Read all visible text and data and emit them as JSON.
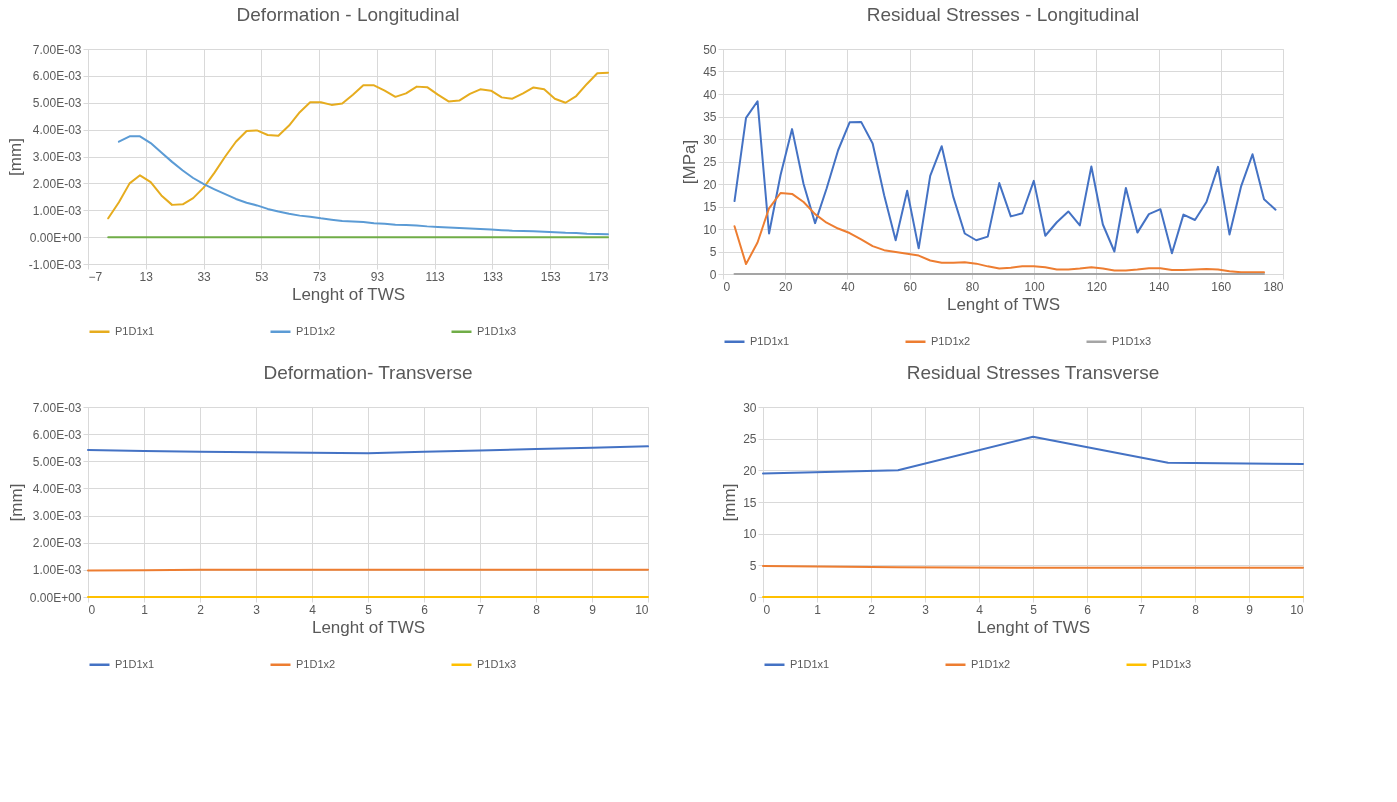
{
  "chart_data": [
    {
      "type": "line",
      "title": "Deformation - Longitudinal",
      "xlabel": "Lenght of TWS",
      "ylabel": "[mm]",
      "x": [
        0,
        3.7,
        7.4,
        11,
        14.7,
        18.4,
        22.1,
        25.8,
        29.4,
        33.1,
        36.8,
        40.5,
        44.2,
        47.9,
        51.5,
        55.2,
        58.9,
        62.6,
        66.3,
        69.9,
        73.6,
        77.3,
        81,
        84.7,
        88.3,
        92,
        95.7,
        99.4,
        103.1,
        106.8,
        110.4,
        114.1,
        117.8,
        121.5,
        125.2,
        128.8,
        132.5,
        136.2,
        139.9,
        143.6,
        147.2,
        150.9,
        154.6,
        158.3,
        162,
        165.7,
        169.3,
        173
      ],
      "series": [
        {
          "name": "P1D1x1",
          "color": "#e6ac1e",
          "values": [
            0.0007,
            0.0013,
            0.002,
            0.0023,
            0.00205,
            0.00155,
            0.0012,
            0.00122,
            0.00145,
            0.00185,
            0.0024,
            0.003,
            0.00355,
            0.00395,
            0.00397,
            0.0038,
            0.00377,
            0.00415,
            0.00465,
            0.00502,
            0.00502,
            0.00492,
            0.00497,
            0.0053,
            0.00565,
            0.00565,
            0.00545,
            0.00522,
            0.00535,
            0.0056,
            0.00558,
            0.0053,
            0.00505,
            0.00508,
            0.00533,
            0.0055,
            0.00545,
            0.0052,
            0.00515,
            0.00535,
            0.00557,
            0.0055,
            0.00515,
            0.005,
            0.00525,
            0.0057,
            0.0061,
            0.00612
          ]
        },
        {
          "name": "P1D1x2",
          "color": "#5b9bd5",
          "values": [
            null,
            0.00355,
            0.00375,
            0.00375,
            0.0035,
            0.00315,
            0.0028,
            0.00248,
            0.0022,
            0.00197,
            0.00178,
            0.0016,
            0.00142,
            0.00128,
            0.00118,
            0.00105,
            0.00095,
            0.00087,
            0.0008,
            0.00076,
            0.0007,
            0.00065,
            0.0006,
            0.00058,
            0.00056,
            0.00052,
            0.0005,
            0.00046,
            0.00045,
            0.00043,
            0.0004,
            0.00038,
            0.00036,
            0.00034,
            0.00032,
            0.0003,
            0.00028,
            0.00026,
            0.00024,
            0.00023,
            0.00022,
            0.0002,
            0.00018,
            0.00016,
            0.00015,
            0.00013,
            0.00012,
            0.00011
          ]
        },
        {
          "name": "P1D1x3",
          "color": "#70ad47",
          "values": [
            0,
            0,
            0,
            0,
            0,
            0,
            0,
            0,
            0,
            0,
            0,
            0,
            0,
            0,
            0,
            0,
            0,
            0,
            0,
            0,
            0,
            0,
            0,
            0,
            0,
            0,
            0,
            0,
            0,
            0,
            0,
            0,
            0,
            0,
            0,
            0,
            0,
            0,
            0,
            0,
            0,
            0,
            0,
            0,
            0,
            0,
            0,
            0
          ]
        }
      ],
      "xlim": [
        -7,
        173
      ],
      "xticks": [
        -7,
        13,
        33,
        53,
        73,
        93,
        113,
        133,
        153,
        173
      ],
      "ylim": [
        -0.001,
        0.007
      ],
      "yticks": [
        {
          "value": -0.001,
          "label": "-1.00E-03"
        },
        {
          "value": 0,
          "label": "0.00E+00"
        },
        {
          "value": 0.001,
          "label": "1.00E-03"
        },
        {
          "value": 0.002,
          "label": "2.00E-03"
        },
        {
          "value": 0.003,
          "label": "3.00E-03"
        },
        {
          "value": 0.004,
          "label": "4.00E-03"
        },
        {
          "value": 0.005,
          "label": "5.00E-03"
        },
        {
          "value": 0.006,
          "label": "6.00E-03"
        },
        {
          "value": 0.007,
          "label": "7.00E-03"
        }
      ],
      "grid": true,
      "legend": "bottom",
      "marker": "none",
      "line_style": "solid"
    },
    {
      "type": "line",
      "title": "Residual Stresses - Longitudinal",
      "xlabel": "Lenght of TWS",
      "ylabel": "[MPa]",
      "x": [
        3.7,
        7.4,
        11.1,
        14.8,
        18.5,
        22.2,
        25.9,
        29.6,
        33.3,
        37,
        40.7,
        44.4,
        48.1,
        51.8,
        55.5,
        59.2,
        62.9,
        66.6,
        70.3,
        74,
        77.7,
        81.4,
        85.1,
        88.8,
        92.5,
        96.2,
        99.9,
        103.6,
        107.3,
        111,
        114.7,
        118.4,
        122.1,
        125.8,
        129.5,
        133.2,
        136.9,
        140.6,
        144.3,
        148,
        151.7,
        155.4,
        159.1,
        162.8,
        166.5,
        170.2,
        173.9,
        177.6
      ],
      "series": [
        {
          "name": "P1D1x1",
          "color": "#4472c4",
          "values": [
            16.2,
            34.7,
            38.4,
            9,
            22,
            32.2,
            20,
            11.3,
            19,
            27.5,
            33.7,
            33.8,
            29,
            17.5,
            7.5,
            18.5,
            5.7,
            21.8,
            28.4,
            17.2,
            9,
            7.5,
            8.3,
            20.2,
            12.8,
            13.5,
            20.7,
            8.5,
            11.5,
            13.9,
            10.8,
            23.9,
            11,
            5,
            19.1,
            9.2,
            13.3,
            14.4,
            4.6,
            13.2,
            12,
            16,
            23.8,
            8.8,
            19.4,
            26.6,
            16.6,
            14.3
          ]
        },
        {
          "name": "P1D1x2",
          "color": "#ed7d31",
          "values": [
            10.6,
            2.2,
            7,
            14.6,
            18,
            17.8,
            16,
            13.3,
            11.4,
            10.1,
            9.1,
            7.7,
            6.2,
            5.3,
            4.9,
            4.5,
            4.1,
            3,
            2.5,
            2.5,
            2.6,
            2.3,
            1.7,
            1.2,
            1.4,
            1.7,
            1.7,
            1.5,
            1,
            1,
            1.2,
            1.5,
            1.2,
            0.8,
            0.8,
            1,
            1.3,
            1.3,
            0.9,
            0.9,
            1,
            1.1,
            1,
            0.6,
            0.4,
            0.4,
            0.4,
            null
          ]
        },
        {
          "name": "P1D1x3",
          "color": "#a5a5a5",
          "values": [
            0,
            0,
            0,
            0,
            0,
            0,
            0,
            0,
            0,
            0,
            0,
            0,
            0,
            0,
            0,
            0,
            0,
            0,
            0,
            0,
            0,
            0,
            0,
            0,
            0,
            0,
            0,
            0,
            0,
            0,
            0,
            0,
            0,
            0,
            0,
            0,
            0,
            0,
            0,
            0,
            0,
            0,
            0,
            0,
            0,
            0,
            0,
            null
          ]
        }
      ],
      "xlim": [
        0,
        180
      ],
      "xticks": [
        0,
        20,
        40,
        60,
        80,
        100,
        120,
        140,
        160,
        180
      ],
      "ylim": [
        0,
        50
      ],
      "yticks": [
        0,
        5,
        10,
        15,
        20,
        25,
        30,
        35,
        40,
        45,
        50
      ],
      "grid": true,
      "legend": "bottom",
      "marker": "none",
      "line_style": "solid"
    },
    {
      "type": "line",
      "title": "Deformation- Transverse",
      "xlabel": "Lenght of TWS",
      "ylabel": "[mm]",
      "x": [
        0,
        1,
        2,
        3,
        4,
        5,
        6,
        7,
        8,
        9,
        10
      ],
      "series": [
        {
          "name": "P1D1x1",
          "color": "#4472c4",
          "values": [
            0.00542,
            0.00538,
            0.00535,
            0.00533,
            0.00531,
            0.0053,
            0.00535,
            0.0054,
            0.00545,
            0.0055,
            0.00555
          ]
        },
        {
          "name": "P1D1x2",
          "color": "#ed7d31",
          "values": [
            0.00098,
            0.00099,
            0.001,
            0.001,
            0.001,
            0.001,
            0.001,
            0.001,
            0.001,
            0.001,
            0.001
          ]
        },
        {
          "name": "P1D1x3",
          "color": "#ffc000",
          "values": [
            0,
            0,
            0,
            0,
            0,
            0,
            0,
            0,
            0,
            0,
            0
          ]
        }
      ],
      "xlim": [
        0,
        10
      ],
      "xticks": [
        0,
        1,
        2,
        3,
        4,
        5,
        6,
        7,
        8,
        9,
        10
      ],
      "ylim": [
        0,
        0.007
      ],
      "yticks": [
        {
          "value": 0,
          "label": "0.00E+00"
        },
        {
          "value": 0.001,
          "label": "1.00E-03"
        },
        {
          "value": 0.002,
          "label": "2.00E-03"
        },
        {
          "value": 0.003,
          "label": "3.00E-03"
        },
        {
          "value": 0.004,
          "label": "4.00E-03"
        },
        {
          "value": 0.005,
          "label": "5.00E-03"
        },
        {
          "value": 0.006,
          "label": "6.00E-03"
        },
        {
          "value": 0.007,
          "label": "7.00E-03"
        }
      ],
      "grid": true,
      "legend": "bottom",
      "marker": "none",
      "line_style": "solid"
    },
    {
      "type": "line",
      "title": "Residual Stresses Transverse",
      "xlabel": "Lenght of TWS",
      "ylabel": "[mm]",
      "x": [
        0,
        2.5,
        5,
        7.5,
        10
      ],
      "series": [
        {
          "name": "P1D1x1",
          "color": "#4472c4",
          "values": [
            19.5,
            20,
            25.3,
            21.2,
            21
          ]
        },
        {
          "name": "P1D1x2",
          "color": "#ed7d31",
          "values": [
            4.9,
            4.7,
            4.6,
            4.6,
            4.6
          ]
        },
        {
          "name": "P1D1x3",
          "color": "#ffc000",
          "values": [
            0,
            0,
            0,
            0,
            0
          ]
        }
      ],
      "xlim": [
        0,
        10
      ],
      "xticks": [
        0,
        1,
        2,
        3,
        4,
        5,
        6,
        7,
        8,
        9,
        10
      ],
      "ylim": [
        0,
        30
      ],
      "yticks": [
        0,
        5,
        10,
        15,
        20,
        25,
        30
      ],
      "grid": true,
      "legend": "bottom",
      "marker": "none",
      "line_style": "solid"
    }
  ]
}
